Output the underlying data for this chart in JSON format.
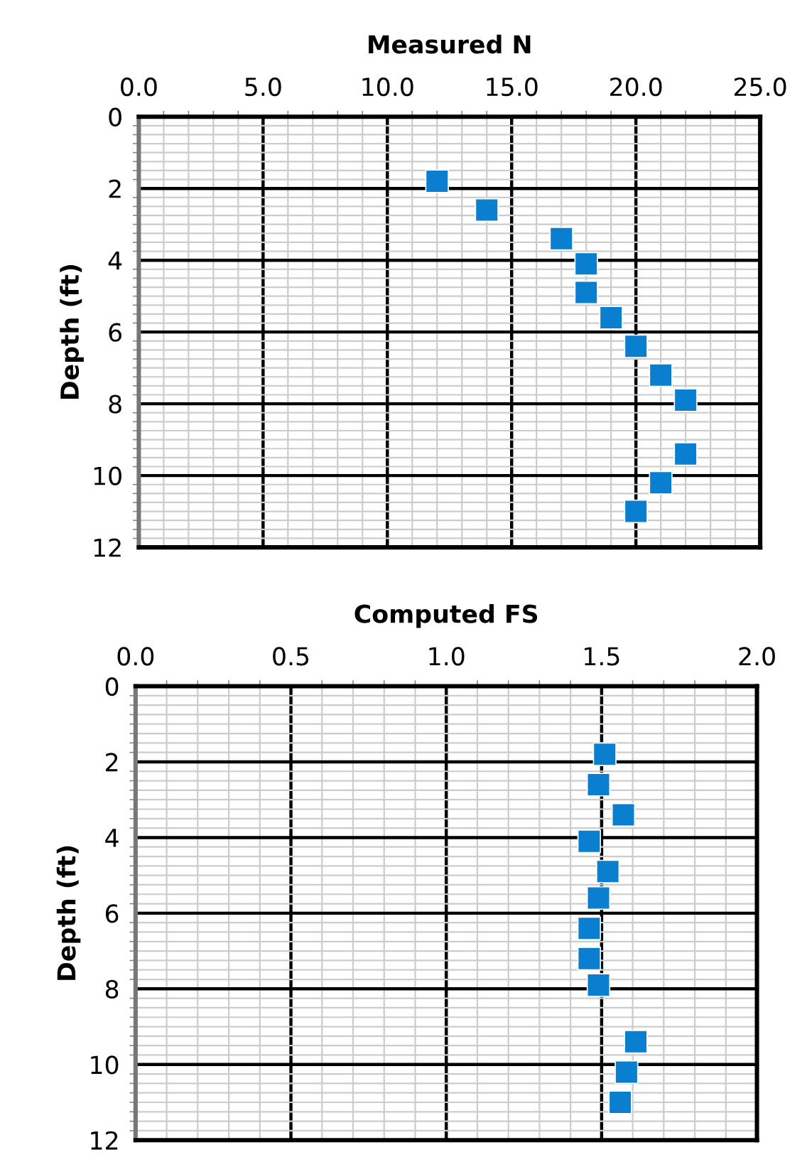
{
  "chart_data": [
    {
      "type": "scatter",
      "xlabel": "Measured N",
      "ylabel": "Depth (ft)",
      "marker": "square",
      "grid": true,
      "x": [
        12.0,
        14.0,
        17.0,
        18.0,
        18.0,
        19.0,
        20.0,
        21.0,
        22.0,
        22.0,
        21.0,
        20.0
      ],
      "series": [
        {
          "color": "#0a7fd0",
          "values": [
            1.8,
            2.6,
            3.4,
            4.1,
            4.9,
            5.6,
            6.4,
            7.2,
            7.9,
            9.4,
            10.2,
            11.0
          ]
        }
      ],
      "xlim": [
        0,
        25
      ],
      "xticks": [
        {
          "value": 0,
          "label": "0.0"
        },
        {
          "value": 5,
          "label": "5.0"
        },
        {
          "value": 10,
          "label": "10.0"
        },
        {
          "value": 15,
          "label": "15.0"
        },
        {
          "value": 20,
          "label": "20.0"
        },
        {
          "value": 25,
          "label": "25.0"
        }
      ],
      "ylim": [
        12,
        0
      ],
      "yticks": [
        0,
        2,
        4,
        6,
        8,
        10,
        12
      ]
    },
    {
      "type": "scatter",
      "xlabel": "Computed FS",
      "ylabel": "Depth (ft)",
      "marker": "square",
      "grid": true,
      "x": [
        1.51,
        1.49,
        1.57,
        1.46,
        1.52,
        1.49,
        1.46,
        1.46,
        1.49,
        1.61,
        1.58,
        1.56
      ],
      "series": [
        {
          "color": "#0a7fd0",
          "values": [
            1.8,
            2.6,
            3.4,
            4.1,
            4.9,
            5.6,
            6.4,
            7.2,
            7.9,
            9.4,
            10.2,
            11.0
          ]
        }
      ],
      "xlim": [
        0,
        2
      ],
      "xticks": [
        {
          "value": 0,
          "label": "0.0"
        },
        {
          "value": 0.5,
          "label": "0.5"
        },
        {
          "value": 1.0,
          "label": "1.0"
        },
        {
          "value": 1.5,
          "label": "1.5"
        },
        {
          "value": 2.0,
          "label": "2.0"
        }
      ],
      "ylim": [
        12,
        0
      ],
      "yticks": [
        0,
        2,
        4,
        6,
        8,
        10,
        12
      ]
    }
  ]
}
